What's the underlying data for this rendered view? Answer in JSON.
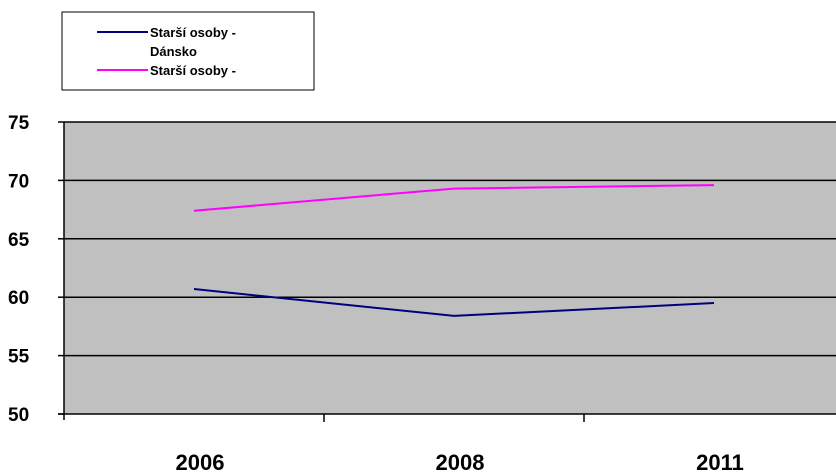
{
  "chart_data": {
    "type": "line",
    "title": "",
    "xlabel": "",
    "ylabel": "",
    "categories": [
      "2006",
      "2008",
      "2011"
    ],
    "ylim": [
      50,
      75
    ],
    "yticks": [
      50,
      55,
      60,
      65,
      70,
      75
    ],
    "grid": true,
    "legend_position": "top-left",
    "plot_background": "#c0c0c0",
    "series": [
      {
        "name": "Starší osoby - Dánsko",
        "legend_lines": [
          "Starší osoby -",
          "Dánsko"
        ],
        "color": "#000080",
        "values": [
          60.7,
          58.4,
          59.5
        ]
      },
      {
        "name": "Starší osoby -",
        "legend_lines": [
          "Starší osoby -"
        ],
        "color": "#ff00ff",
        "values": [
          67.4,
          69.3,
          69.6
        ]
      }
    ]
  }
}
